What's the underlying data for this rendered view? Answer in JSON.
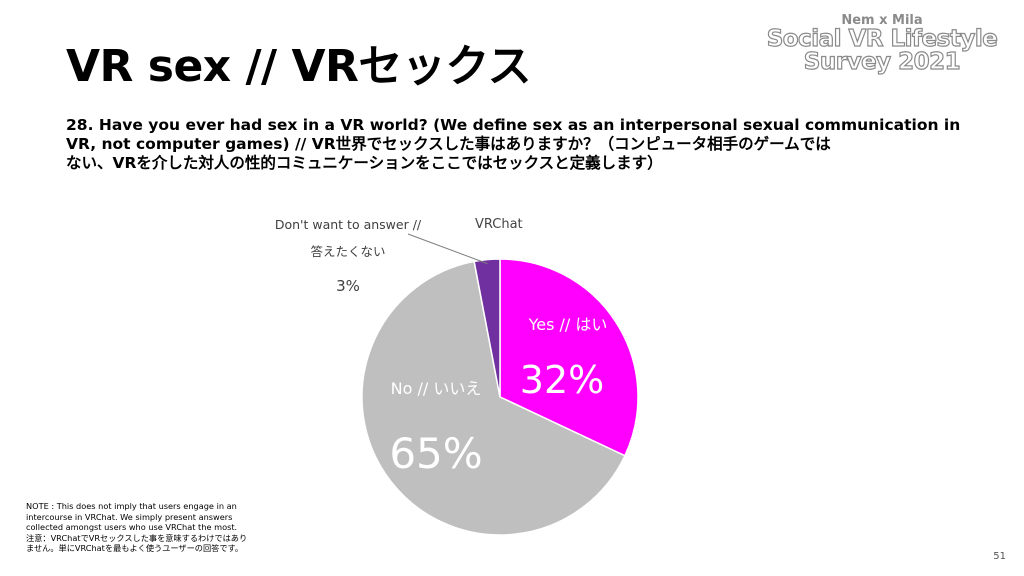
{
  "title": "VR sex // VRセックス",
  "brand": {
    "top": "Nem x Mila",
    "line1": "Social VR Lifestyle",
    "line2": "Survey 2021"
  },
  "question": {
    "line1": "28. Have you ever had sex in a VR world? (We define sex as an interpersonal sexual communication in",
    "line2": "VR, not computer games) // VR世界でセックスした事はありますか？（コンピュータ相手のゲームでは",
    "line3": "ない、VRを介した対人の性的コミュニケーションをここではセックスと定義します）"
  },
  "chart_data": {
    "type": "pie",
    "subtitle": "VRChat",
    "slices": [
      {
        "label": "Yes // はい",
        "value": 32,
        "value_label": "32%",
        "color": "#ff00ff"
      },
      {
        "label": "No // いいえ",
        "value": 65,
        "value_label": "65%",
        "color": "#bfbfbf"
      },
      {
        "label_line1": "Don't want to answer //",
        "label_line2": "答えたくない",
        "value": 3,
        "value_label": "3%",
        "color": "#7030a0"
      }
    ]
  },
  "note": {
    "line1": "NOTE : This does not imply that users engage in an",
    "line2": "intercourse in VRChat. We simply present answers",
    "line3": "collected amongst users who use VRChat the most.",
    "line4": "注意：VRChatでVRセックスした事を意味するわけではあり",
    "line5": "ません。単にVRChatを最もよく使うユーザーの回答です。"
  },
  "page_number": "51"
}
